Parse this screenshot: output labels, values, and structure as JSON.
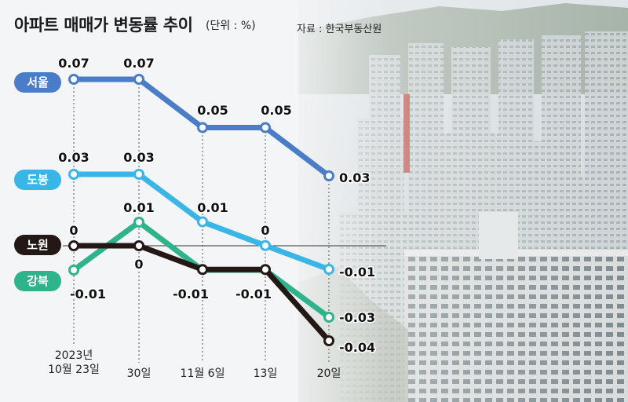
{
  "title": "아파트 매매가 변동률 추이",
  "unit": "(단위 : %)",
  "source": "자료 : 한국부동산원",
  "colors": {
    "seoul": "#4a7cc7",
    "dobong": "#39b6e6",
    "nowon": "#231815",
    "gangbuk": "#2fb38a"
  },
  "x_labels": [
    "2023년 10월 23일",
    "30일",
    "11월 6일",
    "13일",
    "20일"
  ],
  "x_label_first_line1": "2023년",
  "x_label_first_line2": "10월 23일",
  "series_labels": {
    "seoul": "서울",
    "dobong": "도봉",
    "nowon": "노원",
    "gangbuk": "강북"
  },
  "chart_data": {
    "type": "line",
    "title": "아파트 매매가 변동률 추이",
    "unit": "%",
    "x": [
      "2023년 10월 23일",
      "30일",
      "11월 6일",
      "13일",
      "20일"
    ],
    "series": [
      {
        "name": "서울",
        "color": "#4a7cc7",
        "values": [
          0.07,
          0.07,
          0.05,
          0.05,
          0.03
        ],
        "labels": [
          "0.07",
          "0.07",
          "0.05",
          "0.05",
          "0.03"
        ]
      },
      {
        "name": "도봉",
        "color": "#39b6e6",
        "values": [
          0.03,
          0.03,
          0.01,
          0,
          -0.01
        ],
        "labels": [
          "0.03",
          "0.03",
          "0.01",
          "0",
          "-0.01"
        ]
      },
      {
        "name": "강북",
        "color": "#2fb38a",
        "values": [
          -0.01,
          0.01,
          null,
          null,
          -0.03
        ],
        "labels": [
          "-0.01",
          "0.01",
          "",
          "",
          "-0.03"
        ]
      },
      {
        "name": "노원",
        "color": "#231815",
        "values": [
          0,
          0,
          -0.01,
          -0.01,
          -0.04
        ],
        "labels": [
          "0",
          "0",
          "-0.01",
          "-0.01",
          "-0.04"
        ]
      }
    ]
  }
}
